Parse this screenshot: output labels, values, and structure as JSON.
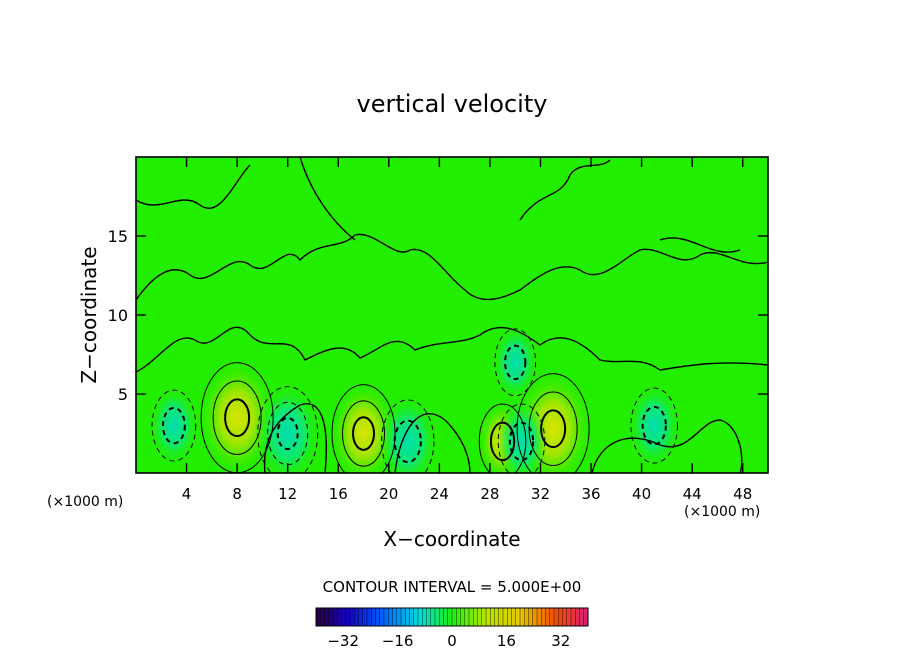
{
  "chart_data": {
    "type": "heatmap",
    "title": "vertical velocity",
    "xlabel": "X−coordinate",
    "ylabel": "Z−coordinate",
    "x_unit_left": "(×1000 m)",
    "x_unit_right": "(×1000 m)",
    "xlim": [
      0,
      50
    ],
    "ylim": [
      0,
      20
    ],
    "x_ticks": [
      4,
      8,
      12,
      16,
      20,
      24,
      28,
      32,
      36,
      40,
      44,
      48
    ],
    "y_ticks": [
      5,
      10,
      15
    ],
    "contour_interval_text": "CONTOUR INTERVAL = 5.000E+00",
    "colorbar": {
      "range": [
        -40,
        40
      ],
      "tick_values": [
        -32,
        -16,
        0,
        16,
        32
      ],
      "tick_labels": [
        "−32",
        "−16",
        "0",
        "16",
        "32"
      ]
    },
    "cells": [
      {
        "x": 8,
        "z": 3.5,
        "w": 14,
        "type": "up"
      },
      {
        "x": 18,
        "z": 2.5,
        "w": 11,
        "type": "up"
      },
      {
        "x": 33,
        "z": 2.8,
        "w": 14,
        "type": "up"
      },
      {
        "x": 29,
        "z": 2.0,
        "w": 6,
        "type": "up"
      },
      {
        "x": 12,
        "z": 2.5,
        "w": -10,
        "type": "down"
      },
      {
        "x": 21.5,
        "z": 2.0,
        "w": -8,
        "type": "down"
      },
      {
        "x": 30.5,
        "z": 2.0,
        "w": -6,
        "type": "down"
      },
      {
        "x": 41,
        "z": 3.0,
        "w": -6,
        "type": "down"
      },
      {
        "x": 3,
        "z": 3.0,
        "w": -5,
        "type": "down"
      },
      {
        "x": 30,
        "z": 7.0,
        "w": -4,
        "type": "down"
      }
    ],
    "colors": {
      "background_field": "#22ee00",
      "upward_core": "#c8e000",
      "downward_core": "#00e0a0"
    }
  }
}
